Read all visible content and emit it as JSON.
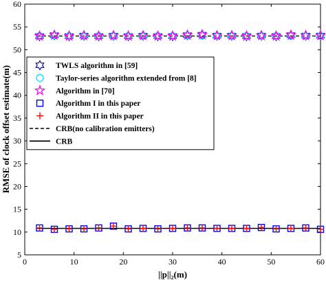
{
  "chart_data": {
    "type": "line",
    "xlabel": "||p||₂(m)",
    "ylabel": "RMSE of clock offset estimate(m)",
    "xlim": [
      0,
      60
    ],
    "ylim": [
      5,
      60
    ],
    "xticks": [
      0,
      10,
      20,
      30,
      40,
      50,
      60
    ],
    "yticks": [
      5,
      10,
      15,
      20,
      25,
      30,
      35,
      40,
      45,
      50,
      55,
      60
    ],
    "grid": false,
    "legend_position": "top-left",
    "x": [
      3,
      6,
      9,
      12,
      15,
      18,
      21,
      24,
      27,
      30,
      33,
      36,
      39,
      42,
      45,
      48,
      51,
      54,
      57,
      60
    ],
    "series": [
      {
        "name": "TWLS algorithm in [59]",
        "marker": "hexagram",
        "color": "#1f1f8f",
        "values": [
          53.0,
          53.2,
          53.0,
          53.1,
          53.0,
          53.1,
          53.0,
          53.1,
          53.0,
          53.0,
          53.2,
          53.3,
          53.1,
          53.1,
          53.0,
          53.1,
          53.0,
          53.2,
          53.1,
          53.1
        ]
      },
      {
        "name": "Taylor-series algorithm extended from [8]",
        "marker": "circle",
        "color": "#00e0ff",
        "values": [
          53.0,
          53.1,
          53.0,
          53.0,
          53.0,
          53.0,
          53.0,
          53.0,
          53.0,
          53.0,
          53.1,
          53.1,
          53.0,
          53.0,
          53.0,
          53.0,
          53.0,
          53.0,
          53.0,
          53.0
        ]
      },
      {
        "name": "Algorithm in [70]",
        "marker": "star",
        "color": "#ff00ff",
        "values": [
          53.0,
          53.2,
          53.0,
          53.1,
          53.0,
          53.1,
          53.0,
          53.1,
          53.0,
          53.0,
          53.2,
          53.3,
          53.1,
          53.1,
          53.0,
          53.1,
          53.0,
          53.2,
          53.1,
          53.1
        ]
      },
      {
        "name": "Algorithm I in this paper",
        "marker": "square",
        "color": "#0000ff",
        "values": [
          10.9,
          10.6,
          10.7,
          10.7,
          10.9,
          11.3,
          10.7,
          10.8,
          10.7,
          10.8,
          10.9,
          10.9,
          10.8,
          10.8,
          10.8,
          11.0,
          10.7,
          10.8,
          10.9,
          10.6
        ]
      },
      {
        "name": "Algorithm II in this paper",
        "marker": "plus",
        "color": "#ff0000",
        "values": [
          10.9,
          10.6,
          10.7,
          10.7,
          10.9,
          11.3,
          10.7,
          10.8,
          10.7,
          10.8,
          10.9,
          10.9,
          10.8,
          10.8,
          10.8,
          11.0,
          10.7,
          10.8,
          10.9,
          10.6
        ]
      },
      {
        "name": "CRB(no calibration emitters)",
        "marker": "none",
        "line": "dashed",
        "color": "#000000",
        "values": [
          53.0,
          53.0,
          53.0,
          53.0,
          53.0,
          53.0,
          53.0,
          53.0,
          53.0,
          53.0,
          53.0,
          53.0,
          53.0,
          53.0,
          53.0,
          53.0,
          53.0,
          53.0,
          53.0,
          53.0
        ]
      },
      {
        "name": "CRB",
        "marker": "none",
        "line": "solid",
        "color": "#000000",
        "values": [
          10.8,
          10.8,
          10.8,
          10.8,
          10.8,
          10.8,
          10.8,
          10.8,
          10.8,
          10.8,
          10.8,
          10.8,
          10.8,
          10.8,
          10.8,
          10.8,
          10.8,
          10.8,
          10.8,
          10.8
        ]
      }
    ]
  }
}
